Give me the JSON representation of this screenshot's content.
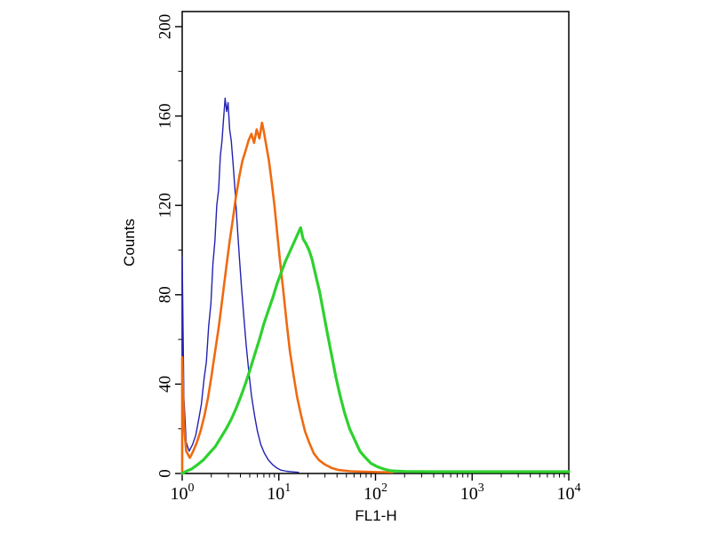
{
  "chart_data": {
    "type": "line",
    "subtype": "flow-cytometry-histogram",
    "title": "",
    "xlabel": "FL1-H",
    "ylabel": "Counts",
    "x_scale": "log",
    "xlim": [
      1,
      10000
    ],
    "ylim": [
      0,
      200
    ],
    "grid": false,
    "legend": "none",
    "y_major_ticks": [
      0,
      40,
      80,
      120,
      160,
      200
    ],
    "y_minor_ticks": [
      20,
      60,
      100,
      140,
      180
    ],
    "x_major_ticks": [
      {
        "base": "10",
        "exp": "0",
        "value": 1
      },
      {
        "base": "10",
        "exp": "1",
        "value": 10
      },
      {
        "base": "10",
        "exp": "2",
        "value": 100
      },
      {
        "base": "10",
        "exp": "3",
        "value": 1000
      },
      {
        "base": "10",
        "exp": "4",
        "value": 10000
      }
    ],
    "colors": {
      "background": "#ffffff",
      "frame": "#000000",
      "text": "#000000"
    },
    "series": [
      {
        "name": "blue-control",
        "color": "#2222b2",
        "width": 1.4,
        "peak": {
          "x": 2.8,
          "y": 168
        },
        "points": [
          [
            1.0,
            0
          ],
          [
            1.0,
            97
          ],
          [
            1.04,
            34
          ],
          [
            1.1,
            14
          ],
          [
            1.18,
            10
          ],
          [
            1.28,
            13
          ],
          [
            1.38,
            17
          ],
          [
            1.48,
            24
          ],
          [
            1.58,
            31
          ],
          [
            1.68,
            42
          ],
          [
            1.78,
            50
          ],
          [
            1.88,
            66
          ],
          [
            1.98,
            76
          ],
          [
            2.08,
            94
          ],
          [
            2.18,
            104
          ],
          [
            2.28,
            120
          ],
          [
            2.38,
            127
          ],
          [
            2.48,
            142
          ],
          [
            2.58,
            149
          ],
          [
            2.68,
            159
          ],
          [
            2.78,
            168
          ],
          [
            2.88,
            162
          ],
          [
            2.98,
            166
          ],
          [
            3.1,
            154
          ],
          [
            3.22,
            149
          ],
          [
            3.36,
            139
          ],
          [
            3.52,
            127
          ],
          [
            3.7,
            112
          ],
          [
            3.9,
            97
          ],
          [
            4.1,
            84
          ],
          [
            4.35,
            70
          ],
          [
            4.6,
            57
          ],
          [
            4.9,
            45
          ],
          [
            5.2,
            35
          ],
          [
            5.6,
            26
          ],
          [
            6.0,
            19
          ],
          [
            6.5,
            13
          ],
          [
            7.1,
            9
          ],
          [
            7.8,
            6
          ],
          [
            8.6,
            4
          ],
          [
            9.5,
            2.5
          ],
          [
            10.5,
            1.5
          ],
          [
            12,
            1
          ],
          [
            14,
            0.7
          ],
          [
            16,
            0.5
          ]
        ]
      },
      {
        "name": "orange",
        "color": "#ef6a10",
        "width": 2.6,
        "peak": {
          "x": 6.7,
          "y": 157
        },
        "points": [
          [
            1.0,
            0
          ],
          [
            1.0,
            52
          ],
          [
            1.04,
            22
          ],
          [
            1.1,
            10
          ],
          [
            1.2,
            7
          ],
          [
            1.3,
            10
          ],
          [
            1.42,
            14
          ],
          [
            1.55,
            19
          ],
          [
            1.7,
            26
          ],
          [
            1.85,
            34
          ],
          [
            2.0,
            43
          ],
          [
            2.2,
            55
          ],
          [
            2.4,
            66
          ],
          [
            2.6,
            78
          ],
          [
            2.85,
            92
          ],
          [
            3.1,
            104
          ],
          [
            3.35,
            114
          ],
          [
            3.6,
            124
          ],
          [
            3.9,
            133
          ],
          [
            4.2,
            140
          ],
          [
            4.5,
            144
          ],
          [
            4.85,
            149
          ],
          [
            5.2,
            152
          ],
          [
            5.55,
            148
          ],
          [
            5.9,
            154
          ],
          [
            6.3,
            150
          ],
          [
            6.7,
            157
          ],
          [
            7.0,
            153
          ],
          [
            7.4,
            147
          ],
          [
            7.9,
            140
          ],
          [
            8.4,
            131
          ],
          [
            9.0,
            120
          ],
          [
            9.6,
            108
          ],
          [
            10.3,
            95
          ],
          [
            11.1,
            82
          ],
          [
            12,
            68
          ],
          [
            13,
            55
          ],
          [
            14.2,
            44
          ],
          [
            15.5,
            34
          ],
          [
            17,
            26
          ],
          [
            18.6,
            19
          ],
          [
            20.5,
            14
          ],
          [
            23,
            9
          ],
          [
            26,
            6
          ],
          [
            30,
            4
          ],
          [
            35,
            2.5
          ],
          [
            42,
            1.5
          ],
          [
            55,
            1
          ],
          [
            75,
            0.8
          ],
          [
            110,
            0.6
          ],
          [
            150,
            0.5
          ]
        ]
      },
      {
        "name": "green",
        "color": "#2ed12e",
        "width": 3.2,
        "peak": {
          "x": 16.8,
          "y": 110
        },
        "points": [
          [
            1.0,
            0
          ],
          [
            1.1,
            1
          ],
          [
            1.25,
            2
          ],
          [
            1.45,
            4
          ],
          [
            1.65,
            6
          ],
          [
            1.9,
            9
          ],
          [
            2.2,
            12
          ],
          [
            2.5,
            16
          ],
          [
            2.85,
            20
          ],
          [
            3.2,
            24
          ],
          [
            3.6,
            29
          ],
          [
            4.0,
            34
          ],
          [
            4.5,
            40
          ],
          [
            5.0,
            46
          ],
          [
            5.6,
            53
          ],
          [
            6.3,
            60
          ],
          [
            7.0,
            67
          ],
          [
            7.8,
            73
          ],
          [
            8.7,
            79
          ],
          [
            9.6,
            85
          ],
          [
            10.6,
            90
          ],
          [
            11.7,
            95
          ],
          [
            12.9,
            99
          ],
          [
            14.2,
            103
          ],
          [
            15.6,
            107
          ],
          [
            16.8,
            110
          ],
          [
            17.8,
            105
          ],
          [
            19,
            103
          ],
          [
            20.5,
            100
          ],
          [
            22,
            96
          ],
          [
            24,
            89
          ],
          [
            26.5,
            81
          ],
          [
            29,
            72
          ],
          [
            32,
            62
          ],
          [
            35.5,
            52
          ],
          [
            39,
            43
          ],
          [
            43,
            35
          ],
          [
            48,
            27
          ],
          [
            54,
            20
          ],
          [
            61,
            15
          ],
          [
            69,
            10
          ],
          [
            79,
            7
          ],
          [
            90,
            4.5
          ],
          [
            105,
            3
          ],
          [
            122,
            2
          ],
          [
            145,
            1.2
          ],
          [
            200,
            0.9
          ],
          [
            400,
            0.8
          ],
          [
            1000,
            0.8
          ],
          [
            3000,
            0.8
          ],
          [
            10000,
            0.8
          ]
        ]
      }
    ]
  }
}
